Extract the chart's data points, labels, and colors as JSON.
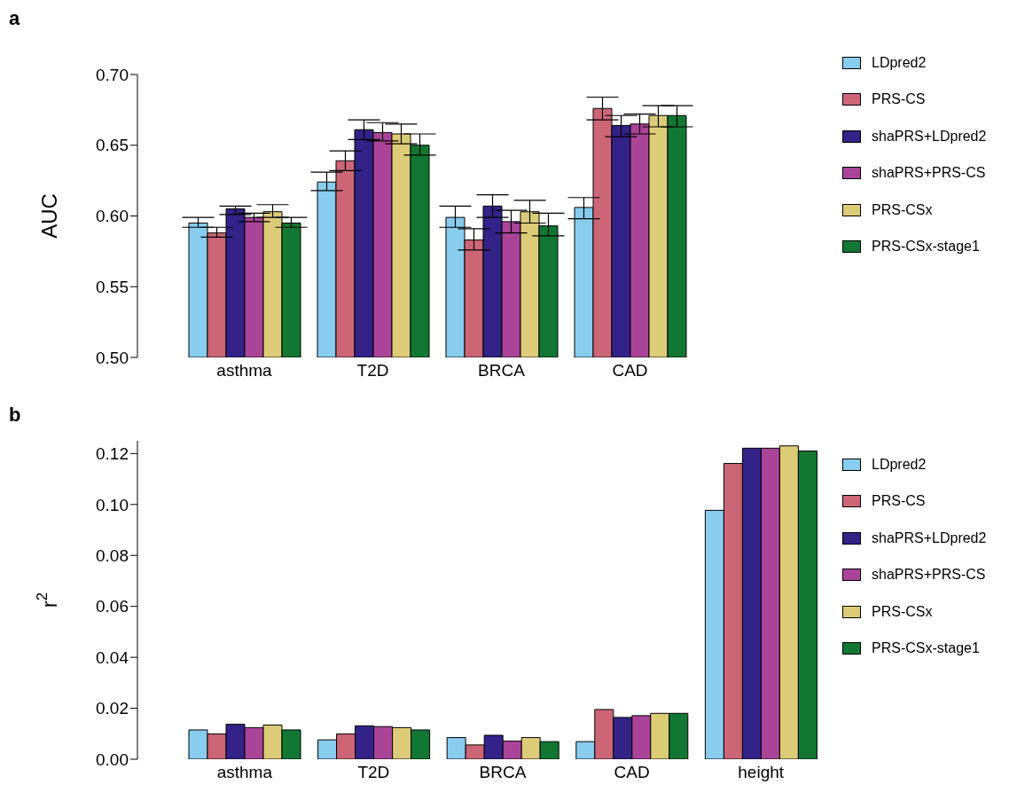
{
  "chart_data": [
    {
      "type": "bar",
      "title": "a",
      "ylabel": "AUC",
      "categories": [
        "asthma",
        "T2D",
        "BRCA",
        "CAD"
      ],
      "ylim": [
        0.5,
        0.7
      ],
      "yticks": [
        {
          "value": 0.5,
          "label": "0.50"
        },
        {
          "value": 0.55,
          "label": "0.55"
        },
        {
          "value": 0.6,
          "label": "0.60"
        },
        {
          "value": 0.65,
          "label": "0.65"
        },
        {
          "value": 0.7,
          "label": "0.70"
        }
      ],
      "legend": "right",
      "grid": false,
      "series": [
        {
          "name": "LDpred2",
          "color": "#88ccee",
          "values": [
            0.595,
            0.624,
            0.599,
            0.606
          ],
          "errors": [
            [
              0.592,
              0.599
            ],
            [
              0.618,
              0.631
            ],
            [
              0.592,
              0.607
            ],
            [
              0.598,
              0.613
            ]
          ]
        },
        {
          "name": "PRS-CS",
          "color": "#cc6677",
          "values": [
            0.588,
            0.639,
            0.583,
            0.676
          ],
          "errors": [
            [
              0.585,
              0.592
            ],
            [
              0.632,
              0.646
            ],
            [
              0.576,
              0.591
            ],
            [
              0.668,
              0.684
            ]
          ]
        },
        {
          "name": "shaPRS+LDpred2",
          "color": "#332288",
          "values": [
            0.605,
            0.661,
            0.607,
            0.664
          ],
          "errors": [
            [
              0.601,
              0.607
            ],
            [
              0.654,
              0.668
            ],
            [
              0.599,
              0.615
            ],
            [
              0.656,
              0.671
            ]
          ]
        },
        {
          "name": "shaPRS+PRS-CS",
          "color": "#aa4499",
          "values": [
            0.599,
            0.659,
            0.596,
            0.665
          ],
          "errors": [
            [
              0.596,
              0.602
            ],
            [
              0.653,
              0.666
            ],
            [
              0.588,
              0.604
            ],
            [
              0.658,
              0.672
            ]
          ]
        },
        {
          "name": "PRS-CSx",
          "color": "#ddcc77",
          "values": [
            0.603,
            0.658,
            0.603,
            0.671
          ],
          "errors": [
            [
              0.599,
              0.608
            ],
            [
              0.651,
              0.665
            ],
            [
              0.595,
              0.611
            ],
            [
              0.663,
              0.678
            ]
          ]
        },
        {
          "name": "PRS-CSx-stage1",
          "color": "#117733",
          "values": [
            0.595,
            0.65,
            0.593,
            0.671
          ],
          "errors": [
            [
              0.592,
              0.599
            ],
            [
              0.643,
              0.658
            ],
            [
              0.586,
              0.602
            ],
            [
              0.663,
              0.678
            ]
          ]
        }
      ]
    },
    {
      "type": "bar",
      "title": "b",
      "ylabel": "r$^{2}$",
      "categories": [
        "asthma",
        "T2D",
        "BRCA",
        "CAD",
        "height"
      ],
      "ylim": [
        0,
        0.125
      ],
      "yticks": [
        {
          "value": 0,
          "label": "0.00"
        },
        {
          "value": 0.02,
          "label": "0.02"
        },
        {
          "value": 0.04,
          "label": "0.04"
        },
        {
          "value": 0.06,
          "label": "0.06"
        },
        {
          "value": 0.08,
          "label": "0.08"
        },
        {
          "value": 0.1,
          "label": "0.10"
        },
        {
          "value": 0.12,
          "label": "0.12"
        }
      ],
      "legend": "right",
      "grid": false,
      "series": [
        {
          "name": "LDpred2",
          "color": "#88ccee",
          "values": [
            0.0115,
            0.0076,
            0.0085,
            0.0069,
            0.0977
          ]
        },
        {
          "name": "PRS-CS",
          "color": "#cc6677",
          "values": [
            0.0099,
            0.0099,
            0.0056,
            0.0195,
            0.1161
          ]
        },
        {
          "name": "shaPRS+LDpred2",
          "color": "#332288",
          "values": [
            0.0137,
            0.0131,
            0.0094,
            0.0164,
            0.1221
          ]
        },
        {
          "name": "shaPRS+PRS-CS",
          "color": "#aa4499",
          "values": [
            0.0124,
            0.0128,
            0.0071,
            0.0171,
            0.1221
          ]
        },
        {
          "name": "PRS-CSx",
          "color": "#ddcc77",
          "values": [
            0.0134,
            0.0124,
            0.0085,
            0.018,
            0.123
          ]
        },
        {
          "name": "PRS-CSx-stage1",
          "color": "#117733",
          "values": [
            0.0115,
            0.0115,
            0.0069,
            0.018,
            0.121
          ]
        }
      ]
    }
  ]
}
